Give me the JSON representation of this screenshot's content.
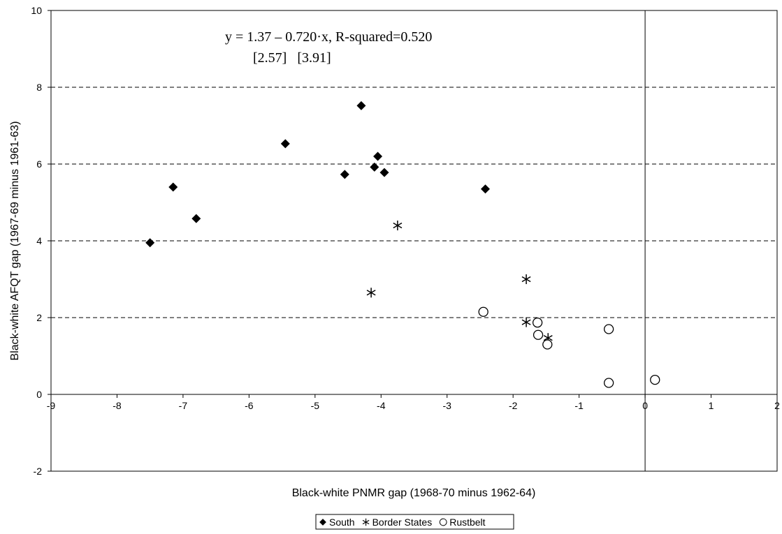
{
  "chart_data": {
    "type": "scatter",
    "xlabel": "Black-white PNMR gap (1968-70 minus 1962-64)",
    "ylabel": "Black-white AFQT gap (1967-69 minus 1961-63)",
    "xlim": [
      -9,
      2
    ],
    "ylim": [
      -2,
      10
    ],
    "x_ticks": [
      "-9",
      "-8",
      "-7",
      "-6",
      "-5",
      "-4",
      "-3",
      "-2",
      "-1",
      "0",
      "1",
      "2"
    ],
    "y_ticks": [
      "-2",
      "0",
      "2",
      "4",
      "6",
      "8",
      "10"
    ],
    "grid": "dashed horizontal gridlines",
    "legend_position": "bottom-center",
    "annotations": {
      "equation": "y = 1.37 – 0.720·x,  R-squared=0.520",
      "standard_errors": "[2.57]   [3.91]"
    },
    "series": [
      {
        "name": "South",
        "marker": "diamond",
        "points": [
          [
            -7.5,
            3.95
          ],
          [
            -7.15,
            5.4
          ],
          [
            -6.8,
            4.58
          ],
          [
            -5.45,
            6.53
          ],
          [
            -4.55,
            5.73
          ],
          [
            -4.3,
            7.52
          ],
          [
            -4.1,
            5.92
          ],
          [
            -4.05,
            6.2
          ],
          [
            -3.95,
            5.78
          ],
          [
            -2.42,
            5.35
          ]
        ]
      },
      {
        "name": "Border States",
        "marker": "asterisk",
        "points": [
          [
            -3.75,
            4.4
          ],
          [
            -4.15,
            2.65
          ],
          [
            -1.8,
            3.0
          ],
          [
            -1.8,
            1.88
          ],
          [
            -1.47,
            1.47
          ]
        ]
      },
      {
        "name": "Rustbelt",
        "marker": "circle",
        "points": [
          [
            -2.45,
            2.15
          ],
          [
            -1.63,
            1.87
          ],
          [
            -1.62,
            1.55
          ],
          [
            -1.48,
            1.3
          ],
          [
            -0.55,
            1.7
          ],
          [
            -0.55,
            0.3
          ],
          [
            0.15,
            0.38
          ]
        ]
      }
    ]
  }
}
